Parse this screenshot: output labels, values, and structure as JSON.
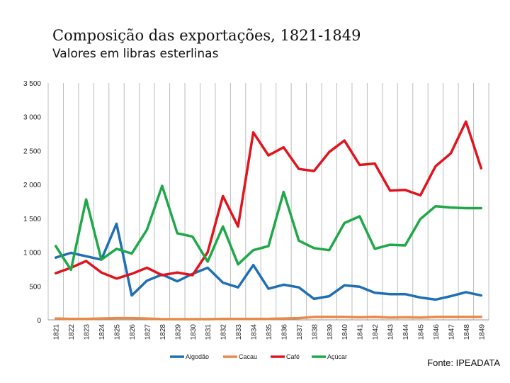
{
  "chart_data": {
    "type": "line",
    "title": "Composição das exportações, 1821-1849",
    "subtitle": "Valores em libras esterlinas",
    "source": "Fonte: IPEADATA",
    "ylim": [
      0,
      3500
    ],
    "yticks": [
      "0",
      "500",
      "1 000",
      "1 500",
      "2 000",
      "2 500",
      "3 000",
      "3 500"
    ],
    "ytick_values": [
      0,
      500,
      1000,
      1500,
      2000,
      2500,
      3000,
      3500
    ],
    "grid": "vertical",
    "legend_position": "bottom",
    "categories": [
      "1821",
      "1822",
      "1823",
      "1824",
      "1825",
      "1826",
      "1827",
      "1828",
      "1829",
      "1830",
      "1831",
      "1832",
      "1833",
      "1834",
      "1835",
      "1836",
      "1837",
      "1838",
      "1839",
      "1840",
      "1841",
      "1842",
      "1843",
      "1844",
      "1845",
      "1846",
      "1847",
      "1848",
      "1849"
    ],
    "series": [
      {
        "name": "Algodão",
        "color": "#1f6fb4",
        "values": [
          920,
          990,
          940,
          890,
          1420,
          360,
          580,
          670,
          570,
          680,
          770,
          550,
          480,
          810,
          460,
          520,
          480,
          310,
          350,
          510,
          490,
          400,
          380,
          380,
          330,
          300,
          350,
          410,
          360
        ]
      },
      {
        "name": "Cacau",
        "color": "#e88a4a",
        "values": [
          20,
          15,
          15,
          20,
          25,
          25,
          20,
          10,
          10,
          10,
          10,
          15,
          15,
          15,
          15,
          20,
          25,
          45,
          45,
          45,
          40,
          45,
          35,
          40,
          35,
          45,
          45,
          45,
          45
        ]
      },
      {
        "name": "Café",
        "color": "#e0141e",
        "values": [
          690,
          770,
          870,
          700,
          610,
          680,
          770,
          660,
          700,
          660,
          1000,
          1830,
          1380,
          2770,
          2430,
          2550,
          2230,
          2200,
          2480,
          2650,
          2290,
          2310,
          1910,
          1920,
          1840,
          2270,
          2460,
          2930,
          2240
        ]
      },
      {
        "name": "Açúcar",
        "color": "#1fa848",
        "values": [
          1090,
          740,
          1780,
          890,
          1050,
          980,
          1330,
          1980,
          1280,
          1230,
          860,
          1380,
          820,
          1030,
          1090,
          1890,
          1170,
          1060,
          1030,
          1430,
          1530,
          1050,
          1110,
          1100,
          1490,
          1680,
          1660,
          1650,
          1650
        ]
      }
    ]
  }
}
